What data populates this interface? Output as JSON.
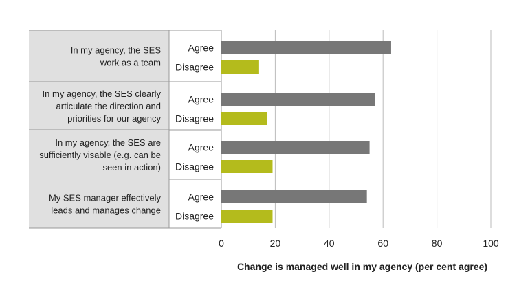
{
  "chart_data": {
    "type": "bar",
    "orientation": "horizontal",
    "title": "",
    "xlabel": "Change is managed well in my agency (per cent agree)",
    "xlim": [
      0,
      100
    ],
    "xticks": [
      "0",
      "20",
      "40",
      "60",
      "80",
      "100"
    ],
    "grid": true,
    "legend": "none",
    "groups": [
      {
        "label_lines": [
          "In my agency, the SES",
          "work as a team"
        ],
        "bars": [
          {
            "response": "Agree",
            "value": 63
          },
          {
            "response": "Disagree",
            "value": 14
          }
        ]
      },
      {
        "label_lines": [
          "In my agency, the SES clearly",
          "articulate the direction and",
          "priorities for our agency"
        ],
        "bars": [
          {
            "response": "Agree",
            "value": 57
          },
          {
            "response": "Disagree",
            "value": 17
          }
        ]
      },
      {
        "label_lines": [
          "In my agency, the SES are",
          "sufficiently visable (e.g. can be",
          "seen in action)"
        ],
        "bars": [
          {
            "response": "Agree",
            "value": 55
          },
          {
            "response": "Disagree",
            "value": 19
          }
        ]
      },
      {
        "label_lines": [
          "My SES manager effectively",
          "leads and manages change"
        ],
        "bars": [
          {
            "response": "Agree",
            "value": 54
          },
          {
            "response": "Disagree",
            "value": 19
          }
        ]
      }
    ],
    "colors": {
      "Agree": "#777777",
      "Disagree": "#b4bb1c",
      "label_panel": "#e0e0e0",
      "gridline": "#bbbbbb",
      "border": "#999999"
    }
  }
}
